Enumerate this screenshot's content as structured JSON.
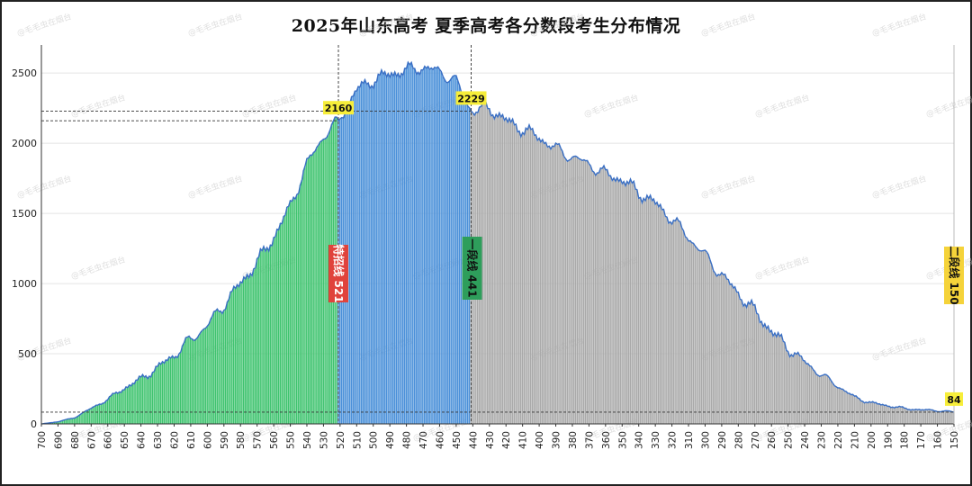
{
  "chart_data": {
    "type": "bar",
    "title": "2025年山东高考  夏季高考各分数段考生分布情况",
    "xlabel": "",
    "ylabel": "",
    "x_range": [
      700,
      150
    ],
    "ylim": [
      0,
      2700
    ],
    "y_ticks": [
      0,
      500,
      1000,
      1500,
      2000,
      2500
    ],
    "x_tick_step": 10,
    "grid": true,
    "legend": "none",
    "profile_points": [
      {
        "score": 700,
        "count": 0
      },
      {
        "score": 690,
        "count": 15
      },
      {
        "score": 680,
        "count": 45
      },
      {
        "score": 670,
        "count": 110
      },
      {
        "score": 660,
        "count": 175
      },
      {
        "score": 650,
        "count": 255
      },
      {
        "score": 640,
        "count": 320
      },
      {
        "score": 630,
        "count": 400
      },
      {
        "score": 620,
        "count": 490
      },
      {
        "score": 610,
        "count": 600
      },
      {
        "score": 600,
        "count": 700
      },
      {
        "score": 590,
        "count": 850
      },
      {
        "score": 580,
        "count": 1000
      },
      {
        "score": 570,
        "count": 1150
      },
      {
        "score": 560,
        "count": 1330
      },
      {
        "score": 550,
        "count": 1550
      },
      {
        "score": 540,
        "count": 1850
      },
      {
        "score": 530,
        "count": 2050
      },
      {
        "score": 521,
        "count": 2160
      },
      {
        "score": 510,
        "count": 2380
      },
      {
        "score": 500,
        "count": 2450
      },
      {
        "score": 490,
        "count": 2490
      },
      {
        "score": 480,
        "count": 2520
      },
      {
        "score": 470,
        "count": 2540
      },
      {
        "score": 460,
        "count": 2510
      },
      {
        "score": 450,
        "count": 2440
      },
      {
        "score": 441,
        "count": 2229
      },
      {
        "score": 430,
        "count": 2250
      },
      {
        "score": 420,
        "count": 2160
      },
      {
        "score": 410,
        "count": 2100
      },
      {
        "score": 400,
        "count": 2040
      },
      {
        "score": 390,
        "count": 1960
      },
      {
        "score": 380,
        "count": 1900
      },
      {
        "score": 370,
        "count": 1850
      },
      {
        "score": 360,
        "count": 1780
      },
      {
        "score": 350,
        "count": 1740
      },
      {
        "score": 340,
        "count": 1650
      },
      {
        "score": 330,
        "count": 1570
      },
      {
        "score": 320,
        "count": 1460
      },
      {
        "score": 310,
        "count": 1330
      },
      {
        "score": 300,
        "count": 1200
      },
      {
        "score": 290,
        "count": 1060
      },
      {
        "score": 280,
        "count": 930
      },
      {
        "score": 270,
        "count": 800
      },
      {
        "score": 260,
        "count": 660
      },
      {
        "score": 250,
        "count": 540
      },
      {
        "score": 240,
        "count": 440
      },
      {
        "score": 230,
        "count": 350
      },
      {
        "score": 220,
        "count": 270
      },
      {
        "score": 210,
        "count": 190
      },
      {
        "score": 200,
        "count": 150
      },
      {
        "score": 190,
        "count": 130
      },
      {
        "score": 180,
        "count": 110
      },
      {
        "score": 170,
        "count": 100
      },
      {
        "score": 160,
        "count": 95
      },
      {
        "score": 150,
        "count": 84
      }
    ],
    "segments": [
      {
        "from": 700,
        "to": 522,
        "color": "#3ec36e"
      },
      {
        "from": 521,
        "to": 442,
        "color": "#4a90d9"
      },
      {
        "from": 441,
        "to": 150,
        "color": "#a9a9a9"
      }
    ],
    "line_color": "#3a6fc4",
    "annotations": [
      {
        "text": "2160",
        "score": 521,
        "count": 2160,
        "bg": "#f7ee3a"
      },
      {
        "text": "2229",
        "score": 441,
        "count": 2229,
        "bg": "#f7ee3a"
      },
      {
        "text": "84",
        "score": 150,
        "count": 84,
        "bg": "#f7ee3a"
      }
    ],
    "markers": [
      {
        "text": "特招线 521",
        "score": 521,
        "bg": "#e0433c",
        "fg": "#ffffff"
      },
      {
        "text": "一段线 441",
        "score": 441,
        "bg": "#2e9e5b",
        "fg": "#111111"
      },
      {
        "text": "二段线 150",
        "score": 150,
        "bg": "#f5d33a",
        "fg": "#111111"
      }
    ]
  },
  "watermark": "@毛毛虫在烟台"
}
